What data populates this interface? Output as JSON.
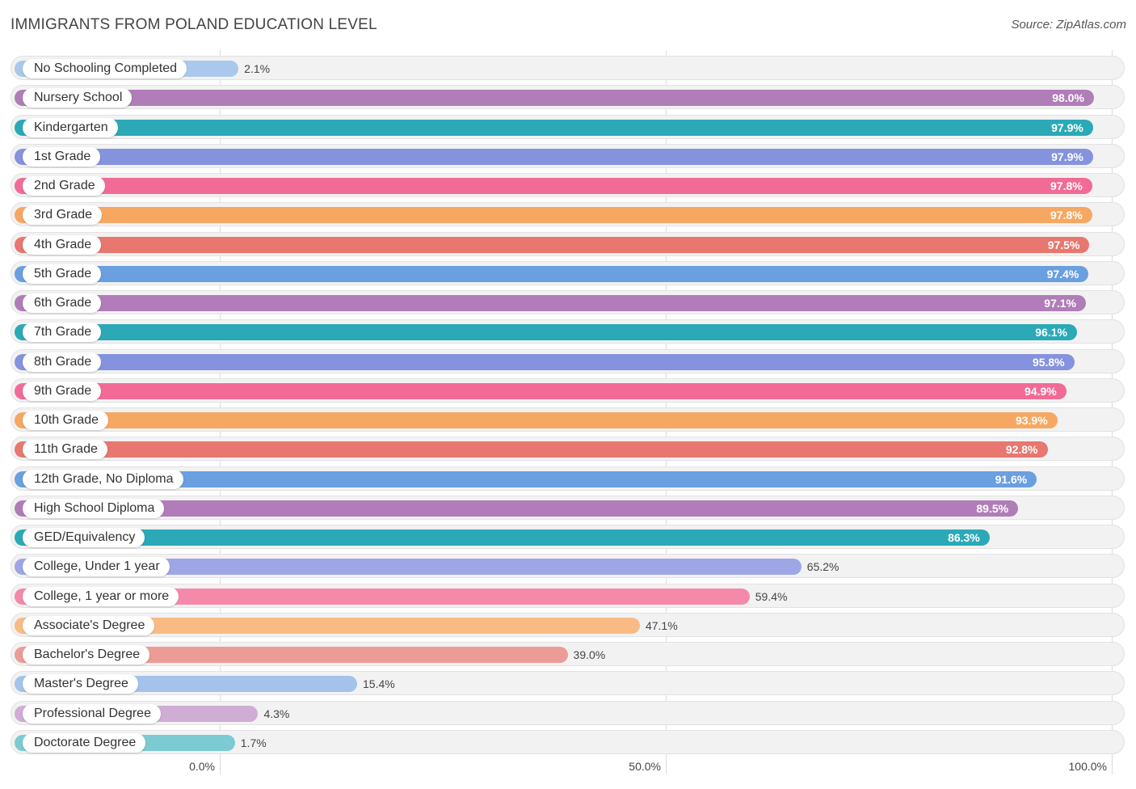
{
  "title": "IMMIGRANTS FROM POLAND EDUCATION LEVEL",
  "source": "Source: ZipAtlas.com",
  "chart_data": {
    "type": "bar",
    "orientation": "horizontal",
    "title": "IMMIGRANTS FROM POLAND EDUCATION LEVEL",
    "xlim": [
      0,
      100
    ],
    "grid": true,
    "x_ticks": [
      "0.0%",
      "50.0%",
      "100.0%"
    ],
    "categories": [
      "No Schooling Completed",
      "Nursery School",
      "Kindergarten",
      "1st Grade",
      "2nd Grade",
      "3rd Grade",
      "4th Grade",
      "5th Grade",
      "6th Grade",
      "7th Grade",
      "8th Grade",
      "9th Grade",
      "10th Grade",
      "11th Grade",
      "12th Grade, No Diploma",
      "High School Diploma",
      "GED/Equivalency",
      "College, Under 1 year",
      "College, 1 year or more",
      "Associate's Degree",
      "Bachelor's Degree",
      "Master's Degree",
      "Professional Degree",
      "Doctorate Degree"
    ],
    "values": [
      2.1,
      98.0,
      97.9,
      97.9,
      97.8,
      97.8,
      97.5,
      97.4,
      97.1,
      96.1,
      95.8,
      94.9,
      93.9,
      92.8,
      91.6,
      89.5,
      86.3,
      65.2,
      59.4,
      47.1,
      39.0,
      15.4,
      4.3,
      1.7
    ],
    "value_labels": [
      "2.1%",
      "98.0%",
      "97.9%",
      "97.9%",
      "97.8%",
      "97.8%",
      "97.5%",
      "97.4%",
      "97.1%",
      "96.1%",
      "95.8%",
      "94.9%",
      "93.9%",
      "92.8%",
      "91.6%",
      "89.5%",
      "86.3%",
      "65.2%",
      "59.4%",
      "47.1%",
      "39.0%",
      "15.4%",
      "4.3%",
      "1.7%"
    ],
    "colors": [
      "#a9c8ec",
      "#b07db8",
      "#2ba9b7",
      "#8592de",
      "#f16b96",
      "#f6a862",
      "#e7776f",
      "#6a9fe0",
      "#b07db8",
      "#2ba9b7",
      "#8592de",
      "#f16b96",
      "#f6a862",
      "#e7776f",
      "#6a9fe0",
      "#b07db8",
      "#2ba9b7",
      "#9ea6e6",
      "#f489aa",
      "#f9bb84",
      "#eb9c96",
      "#a3c3ea",
      "#cfadd4",
      "#7dcbd2"
    ]
  }
}
